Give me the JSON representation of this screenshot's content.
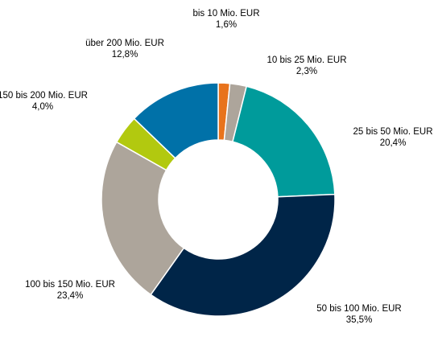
{
  "chart_data": {
    "type": "pie",
    "variant": "donut",
    "title": "",
    "legend": "none",
    "slices": [
      {
        "label": "bis 10 Mio. EUR",
        "value_text": "1,6%",
        "value": 1.6,
        "color": "#E8731C"
      },
      {
        "label": "10 bis 25 Mio. EUR",
        "value_text": "2,3%",
        "value": 2.3,
        "color": "#ADA59B"
      },
      {
        "label": "25 bis 50 Mio. EUR",
        "value_text": "20,4%",
        "value": 20.4,
        "color": "#009B9B"
      },
      {
        "label": "50 bis 100 Mio. EUR",
        "value_text": "35,5%",
        "value": 35.5,
        "color": "#002548"
      },
      {
        "label": "100 bis 150 Mio. EUR",
        "value_text": "23,4%",
        "value": 23.4,
        "color": "#ADA59B"
      },
      {
        "label": "150 bis 200 Mio. EUR",
        "value_text": "4,0%",
        "value": 4.0,
        "color": "#B2C90F"
      },
      {
        "label": "über 200 Mio. EUR",
        "value_text": "12,8%",
        "value": 12.8,
        "color": "#0071A8"
      }
    ]
  }
}
